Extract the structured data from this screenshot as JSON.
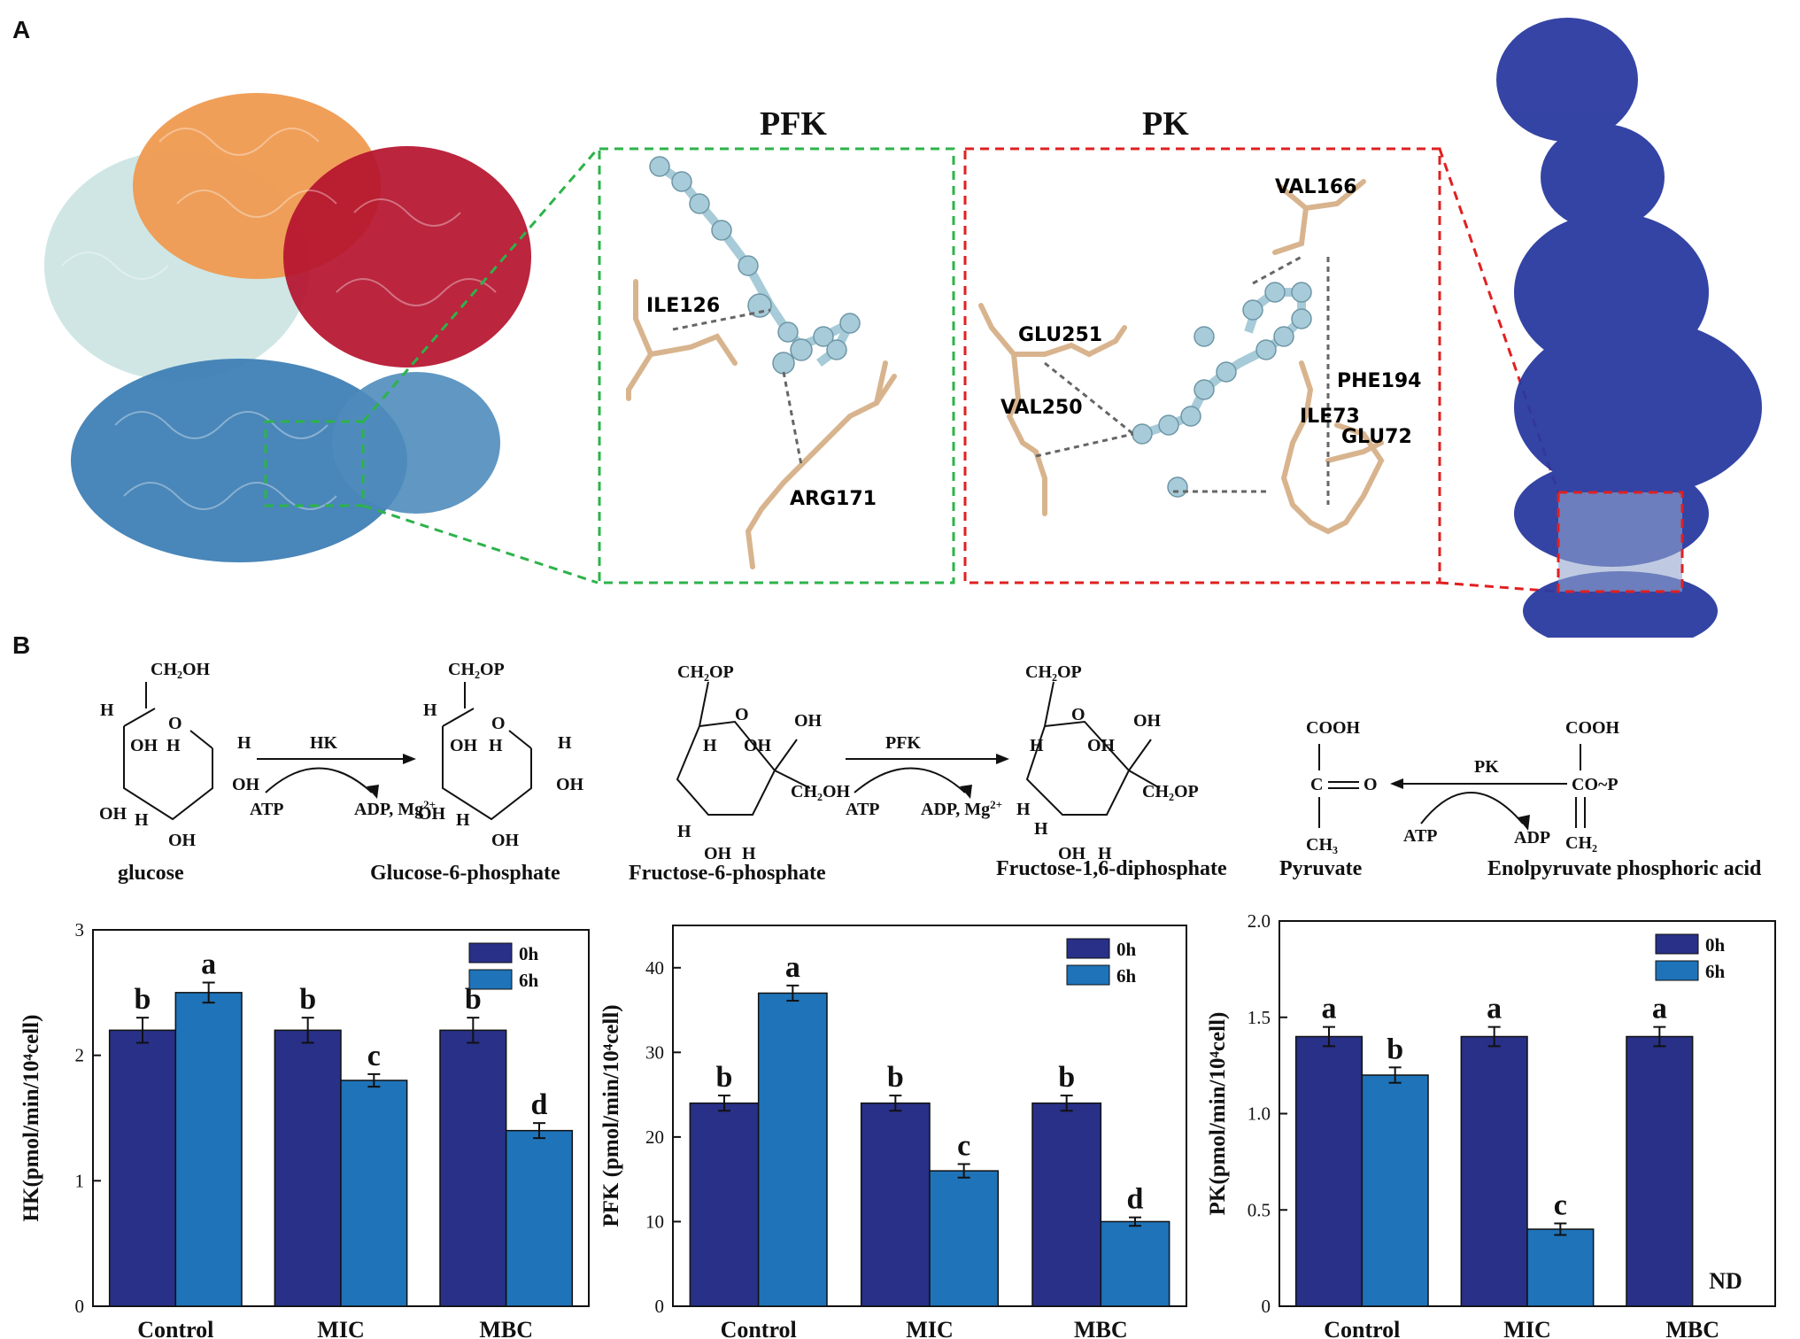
{
  "panelA": {
    "letter": "A",
    "pfk_title": "PFK",
    "pk_title": "PK",
    "pfk_residues": [
      "ILE126",
      "ARG171"
    ],
    "pk_residues": [
      "VAL166",
      "GLU251",
      "PHE194",
      "VAL250",
      "ILE73",
      "GLU72"
    ],
    "colors": {
      "green_box": "#2db34a",
      "red_box": "#e02020",
      "ligand": "#a7cbd8",
      "stick": "#d8b48e",
      "protein_blue": "#2a3aa0"
    }
  },
  "panelB": {
    "letter": "B",
    "reactions": {
      "glucose": "glucose",
      "g6p": "Glucose-6-phosphate",
      "f6p": "Fructose-6-phosphate",
      "f16bp": "Fructose-1,6-diphosphate",
      "pyruvate": "Pyruvate",
      "pep": "Enolpyruvate phosphoric acid",
      "hk": "HK",
      "pfk": "PFK",
      "pk": "PK",
      "atp": "ATP",
      "adp_mg": "ADP, Mg",
      "adp": "ADP",
      "mg_sup": "2+",
      "ch2oh": "CH₂OH",
      "ch2op": "CH₂OP",
      "ch3": "CH₃",
      "cooh": "COOH",
      "coo_p": "CO~P",
      "ch2": "CH₂",
      "o": "O",
      "h": "H",
      "oh": "OH",
      "c": "C"
    }
  },
  "chart_data": [
    {
      "type": "bar",
      "ylabel": "HK(pmol/min/10⁴cell)",
      "categories": [
        "Control",
        "MIC",
        "MBC"
      ],
      "series": [
        {
          "name": "0h",
          "values": [
            2.2,
            2.2,
            2.2
          ],
          "errors": [
            0.1,
            0.1,
            0.1
          ],
          "letters": [
            "b",
            "b",
            "b"
          ],
          "color": "#283087"
        },
        {
          "name": "6h",
          "values": [
            2.5,
            1.8,
            1.4
          ],
          "errors": [
            0.08,
            0.05,
            0.06
          ],
          "letters": [
            "a",
            "c",
            "d"
          ],
          "color": "#1f73b8"
        }
      ],
      "ylim": [
        0,
        3
      ],
      "yticks": [
        "0",
        "1",
        "2",
        "3"
      ],
      "legend": "top-right"
    },
    {
      "type": "bar",
      "ylabel": "PFK (pmol/min/10⁴cell)",
      "categories": [
        "Control",
        "MIC",
        "MBC"
      ],
      "series": [
        {
          "name": "0h",
          "values": [
            24,
            24,
            24
          ],
          "errors": [
            0.9,
            0.9,
            0.9
          ],
          "letters": [
            "b",
            "b",
            "b"
          ],
          "color": "#283087"
        },
        {
          "name": "6h",
          "values": [
            37,
            16,
            10
          ],
          "errors": [
            0.9,
            0.8,
            0.5
          ],
          "letters": [
            "a",
            "c",
            "d"
          ],
          "color": "#1f73b8"
        }
      ],
      "ylim": [
        0,
        45
      ],
      "yticks": [
        "0",
        "10",
        "20",
        "30",
        "40"
      ],
      "legend": "top-right"
    },
    {
      "type": "bar",
      "ylabel": "PK(pmol/min/10⁴cell)",
      "categories": [
        "Control",
        "MIC",
        "MBC"
      ],
      "series": [
        {
          "name": "0h",
          "values": [
            1.4,
            1.4,
            1.4
          ],
          "errors": [
            0.05,
            0.05,
            0.05
          ],
          "letters": [
            "a",
            "a",
            "a"
          ],
          "color": "#283087"
        },
        {
          "name": "6h",
          "values": [
            1.2,
            0.4,
            null
          ],
          "errors": [
            0.04,
            0.03,
            null
          ],
          "letters": [
            "b",
            "c",
            "ND"
          ],
          "color": "#1f73b8"
        }
      ],
      "ylim": [
        0,
        2.0
      ],
      "yticks": [
        "0",
        "0.5",
        "1.0",
        "1.5",
        "2.0"
      ],
      "legend": "top-right"
    }
  ]
}
